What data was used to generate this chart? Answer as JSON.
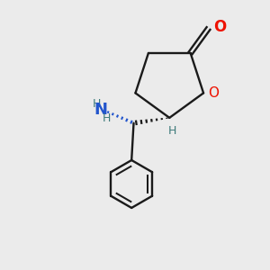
{
  "bg": "#ebebeb",
  "bc": "#1a1a1a",
  "oc": "#ee1100",
  "nc": "#2255cc",
  "hc": "#3d7a7a",
  "figsize": [
    3.0,
    3.0
  ],
  "dpi": 100,
  "xlim": [
    -1.5,
    8.5
  ],
  "ylim": [
    -1.5,
    8.5
  ]
}
